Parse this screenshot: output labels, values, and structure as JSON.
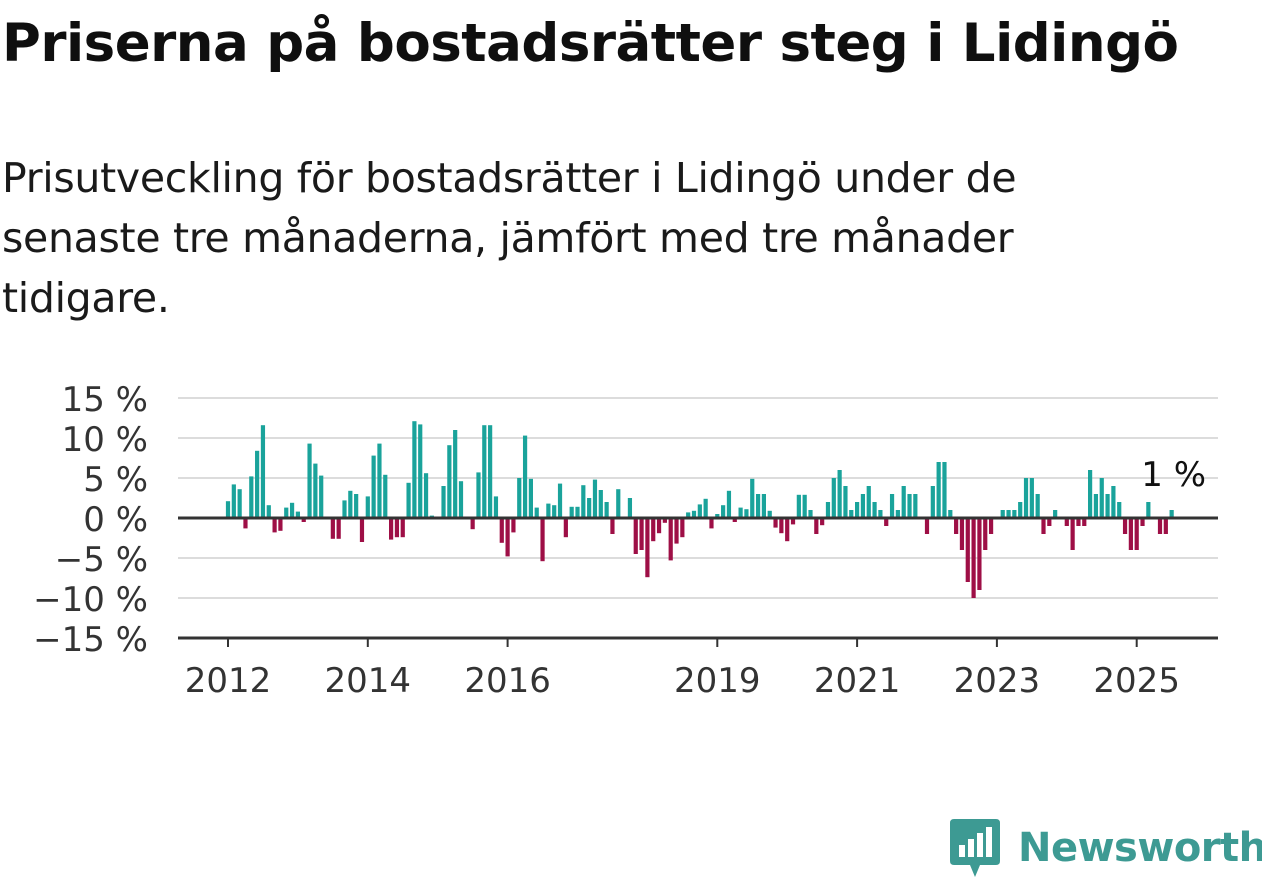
{
  "header": {
    "title": "Priserna på bostadsrätter steg i Lidingö",
    "subtitle": "Prisutveckling för bostadsrätter i Lidingö under de senaste tre månaderna, jämfört med tre månader tidigare."
  },
  "brand": {
    "name": "Newsworthy",
    "icon": "newsworthy-logo-icon",
    "color": "#3d9a93"
  },
  "colors": {
    "positive": "#1aa39b",
    "negative": "#9e0f46",
    "grid": "#dcdcdc",
    "axis": "#333333"
  },
  "chart_data": {
    "type": "bar",
    "title": "Priserna på bostadsrätter steg i Lidingö",
    "subtitle": "Prisutveckling för bostadsrätter i Lidingö under de senaste tre månaderna, jämfört med tre månader tidigare.",
    "ylim": [
      -15,
      15
    ],
    "yticks": [
      15,
      10,
      5,
      0,
      -5,
      -10,
      -15
    ],
    "ytick_labels": [
      "15 %",
      "10 %",
      "5 %",
      "0 %",
      "−5 %",
      "−10 %",
      "−15 %"
    ],
    "xticks": [
      "2012",
      "2014",
      "2016",
      "2019",
      "2021",
      "2023",
      "2025"
    ],
    "grid": true,
    "start": "2012-01",
    "annotation": {
      "label": "1 %",
      "x": "2025-07",
      "value": 1
    },
    "x": [
      "2012-01",
      "2012-02",
      "2012-03",
      "2012-04",
      "2012-05",
      "2012-06",
      "2012-07",
      "2012-08",
      "2012-09",
      "2012-10",
      "2012-11",
      "2012-12",
      "2013-01",
      "2013-02",
      "2013-03",
      "2013-04",
      "2013-05",
      "2013-06",
      "2013-07",
      "2013-08",
      "2013-09",
      "2013-10",
      "2013-11",
      "2013-12",
      "2014-01",
      "2014-02",
      "2014-03",
      "2014-04",
      "2014-05",
      "2014-06",
      "2014-07",
      "2014-08",
      "2014-09",
      "2014-10",
      "2014-11",
      "2014-12",
      "2015-01",
      "2015-02",
      "2015-03",
      "2015-04",
      "2015-05",
      "2015-06",
      "2015-07",
      "2015-08",
      "2015-09",
      "2015-10",
      "2015-11",
      "2015-12",
      "2016-01",
      "2016-02",
      "2016-03",
      "2016-04",
      "2016-05",
      "2016-06",
      "2016-07",
      "2016-08",
      "2016-09",
      "2016-10",
      "2016-11",
      "2016-12",
      "2017-01",
      "2017-02",
      "2017-03",
      "2017-04",
      "2017-05",
      "2017-06",
      "2017-07",
      "2017-08",
      "2017-09",
      "2017-10",
      "2017-11",
      "2017-12",
      "2018-01",
      "2018-02",
      "2018-03",
      "2018-04",
      "2018-05",
      "2018-06",
      "2018-07",
      "2018-08",
      "2018-09",
      "2018-10",
      "2018-11",
      "2018-12",
      "2019-01",
      "2019-02",
      "2019-03",
      "2019-04",
      "2019-05",
      "2019-06",
      "2019-07",
      "2019-08",
      "2019-09",
      "2019-10",
      "2019-11",
      "2019-12",
      "2020-01",
      "2020-02",
      "2020-03",
      "2020-04",
      "2020-05",
      "2020-06",
      "2020-07",
      "2020-08",
      "2020-09",
      "2020-10",
      "2020-11",
      "2020-12",
      "2021-01",
      "2021-02",
      "2021-03",
      "2021-04",
      "2021-05",
      "2021-06",
      "2021-07",
      "2021-08",
      "2021-09",
      "2021-10",
      "2021-11",
      "2021-12",
      "2022-01",
      "2022-02",
      "2022-03",
      "2022-04",
      "2022-05",
      "2022-06",
      "2022-07",
      "2022-08",
      "2022-09",
      "2022-10",
      "2022-11",
      "2022-12",
      "2023-01",
      "2023-02",
      "2023-03",
      "2023-04",
      "2023-05",
      "2023-06",
      "2023-07",
      "2023-08",
      "2023-09",
      "2023-10",
      "2023-11",
      "2023-12",
      "2024-01",
      "2024-02",
      "2024-03",
      "2024-04",
      "2024-05",
      "2024-06",
      "2024-07",
      "2024-08",
      "2024-09",
      "2024-10",
      "2024-11",
      "2024-12",
      "2025-01",
      "2025-02",
      "2025-03",
      "2025-04",
      "2025-05",
      "2025-06",
      "2025-07"
    ],
    "values": [
      2.1,
      4.2,
      3.6,
      -1.3,
      5.2,
      8.4,
      11.6,
      1.6,
      -1.8,
      -1.6,
      1.3,
      1.9,
      0.8,
      -0.5,
      9.3,
      6.8,
      5.3,
      null,
      -2.6,
      -2.6,
      2.2,
      3.4,
      3.0,
      -3.0,
      2.7,
      7.8,
      9.3,
      5.4,
      -2.7,
      -2.4,
      -2.4,
      4.4,
      12.1,
      11.7,
      5.6,
      0.3,
      null,
      4.0,
      9.1,
      11.0,
      4.6,
      null,
      -1.4,
      5.7,
      11.6,
      11.6,
      2.7,
      -3.1,
      -4.8,
      -1.8,
      5.0,
      10.3,
      4.9,
      1.3,
      -5.4,
      1.8,
      1.6,
      4.3,
      -2.4,
      1.4,
      1.4,
      4.1,
      2.5,
      4.8,
      3.5,
      2.0,
      -2.0,
      3.6,
      null,
      2.5,
      -4.5,
      -4.0,
      -7.4,
      -2.9,
      -1.9,
      -0.6,
      -5.3,
      -3.2,
      -2.4,
      0.7,
      0.9,
      1.7,
      2.4,
      -1.3,
      0.5,
      1.6,
      3.4,
      -0.5,
      1.3,
      1.1,
      4.9,
      3.0,
      3.0,
      0.9,
      -1.2,
      -1.9,
      -2.9,
      -0.8,
      2.9,
      2.9,
      1.0,
      -2.0,
      -0.9,
      2.0,
      5.0,
      6.0,
      4.0,
      1.0,
      2.0,
      3.0,
      4.0,
      2.0,
      1.0,
      -1.0,
      3.0,
      1.0,
      4.0,
      3.0,
      3.0,
      null,
      -2.0,
      4.0,
      7.0,
      7.0,
      1.0,
      -2.0,
      -4.0,
      -8.0,
      -10.0,
      -9.0,
      -4.0,
      -2.0,
      null,
      1.0,
      1.0,
      1.0,
      2.0,
      5.0,
      5.0,
      3.0,
      -2.0,
      -1.0,
      1.0,
      null,
      -1.0,
      -4.0,
      -1.0,
      -1.0,
      6.0,
      3.0,
      5.0,
      3.0,
      4.0,
      2.0,
      -2.0,
      -4.0,
      -4.0,
      -1.0,
      2.0,
      null,
      -2.0,
      -2.0,
      1.0
    ]
  }
}
